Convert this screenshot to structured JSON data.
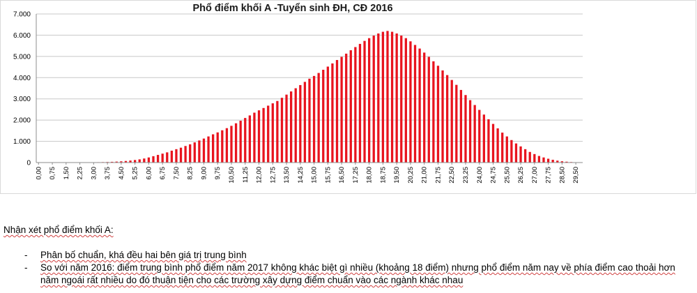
{
  "chart_data": {
    "type": "bar",
    "title": "Phổ điểm khối A -Tuyển sinh ĐH, CĐ 2016",
    "xlabel": "",
    "ylabel": "",
    "ylim": [
      0,
      7000
    ],
    "yticks": [
      "0",
      "1.000",
      "2.000",
      "3.000",
      "4.000",
      "5.000",
      "6.000",
      "7.000"
    ],
    "xtick_labels": [
      "0,00",
      "0,75",
      "1,50",
      "2,25",
      "3,00",
      "3,75",
      "4,50",
      "5,25",
      "6,00",
      "6,75",
      "7,50",
      "8,25",
      "9,00",
      "9,75",
      "10,50",
      "11,25",
      "12,00",
      "12,75",
      "13,50",
      "14,25",
      "15,00",
      "15,75",
      "16,50",
      "17,25",
      "18,00",
      "18,75",
      "19,50",
      "20,25",
      "21,00",
      "21,75",
      "22,50",
      "23,25",
      "24,00",
      "24,75",
      "25,50",
      "26,25",
      "27,00",
      "27,75",
      "28,50",
      "29,50"
    ],
    "bar_color": "#e8141e",
    "grid": true,
    "x": [
      0,
      0.25,
      0.5,
      0.75,
      1,
      1.25,
      1.5,
      1.75,
      2,
      2.25,
      2.5,
      2.75,
      3,
      3.25,
      3.5,
      3.75,
      4,
      4.25,
      4.5,
      4.75,
      5,
      5.25,
      5.5,
      5.75,
      6,
      6.25,
      6.5,
      6.75,
      7,
      7.25,
      7.5,
      7.75,
      8,
      8.25,
      8.5,
      8.75,
      9,
      9.25,
      9.5,
      9.75,
      10,
      10.25,
      10.5,
      10.75,
      11,
      11.25,
      11.5,
      11.75,
      12,
      12.25,
      12.5,
      12.75,
      13,
      13.25,
      13.5,
      13.75,
      14,
      14.25,
      14.5,
      14.75,
      15,
      15.25,
      15.5,
      15.75,
      16,
      16.25,
      16.5,
      16.75,
      17,
      17.25,
      17.5,
      17.75,
      18,
      18.25,
      18.5,
      18.75,
      19,
      19.25,
      19.5,
      19.75,
      20,
      20.25,
      20.5,
      20.75,
      21,
      21.25,
      21.5,
      21.75,
      22,
      22.25,
      22.5,
      22.75,
      23,
      23.25,
      23.5,
      23.75,
      24,
      24.25,
      24.5,
      24.75,
      25,
      25.25,
      25.5,
      25.75,
      26,
      26.25,
      26.5,
      26.75,
      27,
      27.25,
      27.5,
      27.75,
      28,
      28.25,
      28.5,
      28.75,
      29,
      29.25,
      29.5
    ],
    "values": [
      2,
      2,
      2,
      2,
      3,
      3,
      4,
      5,
      6,
      8,
      10,
      12,
      15,
      18,
      22,
      27,
      35,
      45,
      58,
      75,
      95,
      120,
      150,
      190,
      240,
      300,
      360,
      420,
      480,
      560,
      630,
      700,
      780,
      860,
      950,
      1040,
      1130,
      1230,
      1330,
      1420,
      1520,
      1620,
      1730,
      1850,
      1970,
      2100,
      2220,
      2350,
      2460,
      2570,
      2680,
      2790,
      2900,
      3050,
      3200,
      3350,
      3500,
      3650,
      3800,
      3950,
      4080,
      4220,
      4370,
      4520,
      4670,
      4830,
      4980,
      5130,
      5290,
      5440,
      5590,
      5730,
      5860,
      5980,
      6080,
      6160,
      6200,
      6160,
      6080,
      5980,
      5860,
      5710,
      5540,
      5370,
      5180,
      4980,
      4770,
      4560,
      4340,
      4120,
      3890,
      3660,
      3420,
      3180,
      2940,
      2710,
      2480,
      2260,
      2040,
      1820,
      1610,
      1410,
      1230,
      1060,
      900,
      760,
      630,
      500,
      400,
      310,
      240,
      180,
      130,
      90,
      60,
      40,
      25,
      15,
      10
    ]
  },
  "notes": {
    "heading": "Nhận xét phổ điểm khối A:",
    "items": [
      "Phân bố chuẩn, khá đều hai bên giá trị trung bình",
      "So với năm 2016: điểm trung bình phổ điểm năm 2017 không khác biệt gì nhiều (khoảng 18 điểm) nhưng phổ điểm năm nay về phía điểm cao thoải hơn năm ngoái rất nhiều do đó thuận tiện cho các trường xây dựng điểm chuẩn vào các ngành khác nhau"
    ],
    "bullet": "-"
  }
}
